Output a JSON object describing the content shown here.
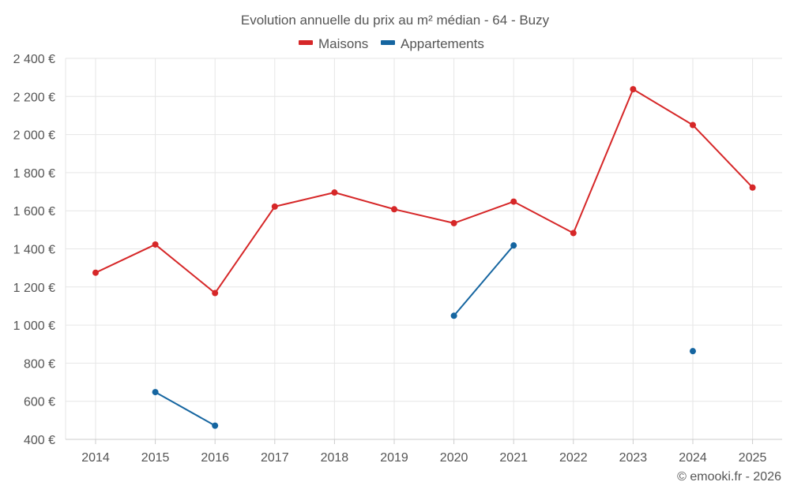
{
  "chart_data": {
    "type": "line",
    "title": "Evolution annuelle du prix au m² médian - 64 - Buzy",
    "categories": [
      "2014",
      "2015",
      "2016",
      "2017",
      "2018",
      "2019",
      "2020",
      "2021",
      "2022",
      "2023",
      "2024",
      "2025"
    ],
    "y_ticks": [
      "400 €",
      "600 €",
      "800 €",
      "1 000 €",
      "1 200 €",
      "1 400 €",
      "1 600 €",
      "1 800 €",
      "2 000 €",
      "2 200 €",
      "2 400 €"
    ],
    "ylim": [
      400,
      2400
    ],
    "grid": true,
    "legend_position": "top-center",
    "series": [
      {
        "name": "Maisons",
        "color": "#d62728",
        "values": [
          1275,
          1423,
          1168,
          1622,
          1696,
          1608,
          1535,
          1648,
          1483,
          2238,
          2050,
          1722
        ]
      },
      {
        "name": "Appartements",
        "color": "#1565a0",
        "values": [
          null,
          648,
          472,
          null,
          null,
          null,
          1049,
          1418,
          null,
          null,
          863,
          null
        ]
      }
    ]
  },
  "credit": "© emooki.fr - 2026"
}
